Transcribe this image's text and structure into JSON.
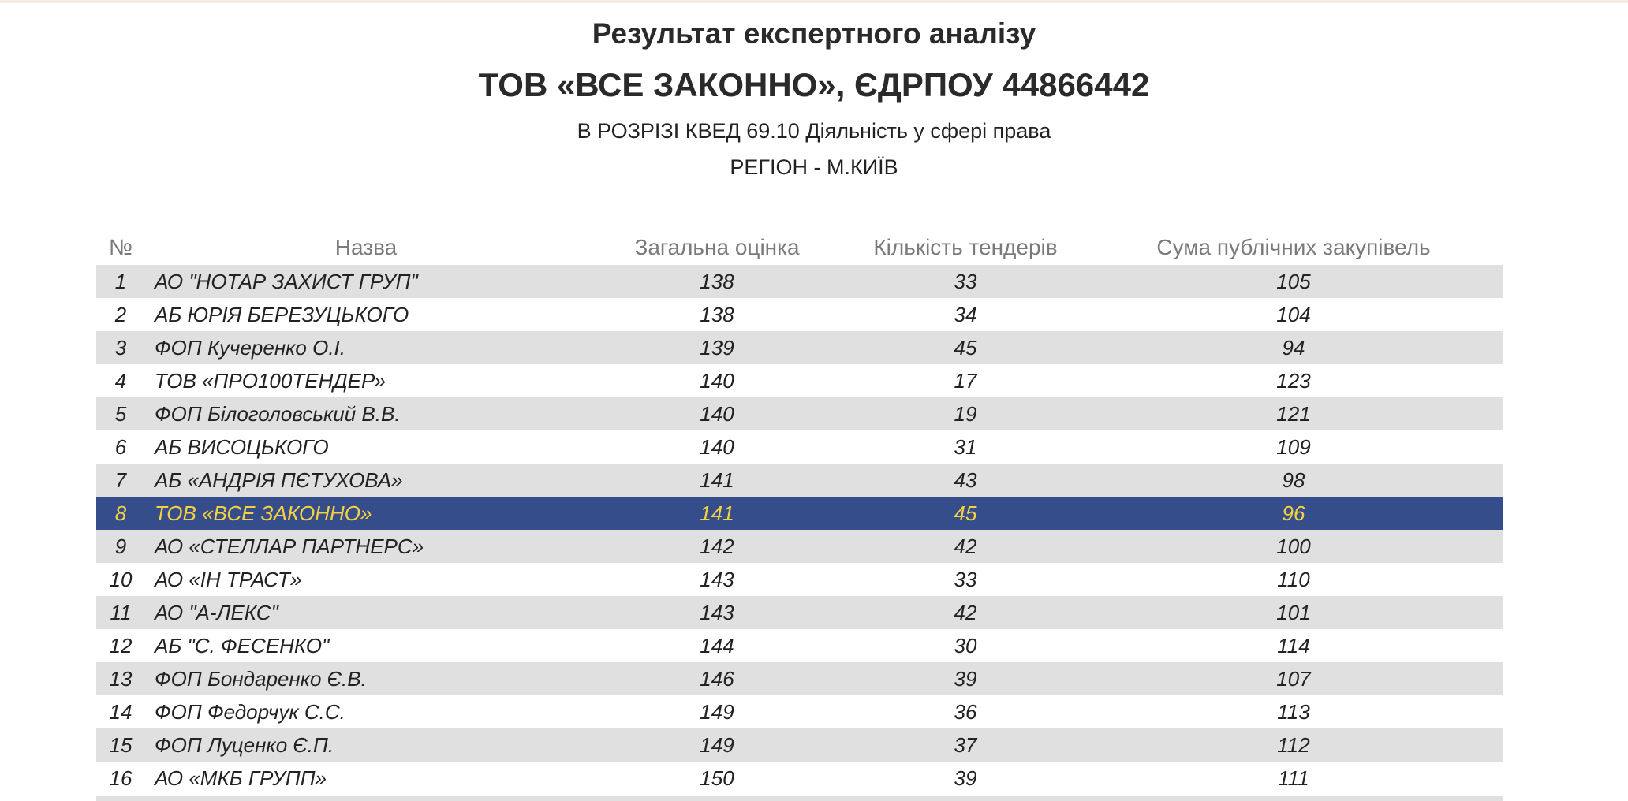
{
  "header": {
    "title": "Результат експертного аналізу",
    "company": "ТОВ «ВСЕ ЗАКОННО», ЄДРПОУ 44866442",
    "subtitle": "В РОЗРІЗІ КВЕД 69.10 Діяльність у сфері права",
    "region": "РЕГІОН - М.КИЇВ"
  },
  "colors": {
    "highlight_bg": "#354d8a",
    "highlight_text": "#f5d142",
    "stripe": "#e0e0e0"
  },
  "table": {
    "columns": [
      "№",
      "Назва",
      "Загальна оцінка",
      "Кількість тендерів",
      "Сума публічних закупівель"
    ],
    "highlighted_row": 8,
    "rows": [
      {
        "n": "1",
        "name": "АО \"НОТАР ЗАХИСТ ГРУП\"",
        "score": "138",
        "tenders": "33",
        "sum": "105"
      },
      {
        "n": "2",
        "name": "АБ ЮРІЯ БЕРЕЗУЦЬКОГО",
        "score": "138",
        "tenders": "34",
        "sum": "104"
      },
      {
        "n": "3",
        "name": "ФОП Кучеренко О.І.",
        "score": "139",
        "tenders": "45",
        "sum": "94"
      },
      {
        "n": "4",
        "name": "ТОВ «ПРО100ТЕНДЕР»",
        "score": "140",
        "tenders": "17",
        "sum": "123"
      },
      {
        "n": "5",
        "name": "ФОП Білоголовський В.В.",
        "score": "140",
        "tenders": "19",
        "sum": "121"
      },
      {
        "n": "6",
        "name": "АБ ВИСОЦЬКОГО",
        "score": "140",
        "tenders": "31",
        "sum": "109"
      },
      {
        "n": "7",
        "name": "АБ «АНДРІЯ ПЄТУХОВА»",
        "score": "141",
        "tenders": "43",
        "sum": "98"
      },
      {
        "n": "8",
        "name": "ТОВ «ВСЕ ЗАКОННО»",
        "score": "141",
        "tenders": "45",
        "sum": "96"
      },
      {
        "n": "9",
        "name": "АО «СТЕЛЛАР ПАРТНЕРС»",
        "score": "142",
        "tenders": "42",
        "sum": "100"
      },
      {
        "n": "10",
        "name": "АО «ІН ТРАСТ»",
        "score": "143",
        "tenders": "33",
        "sum": "110"
      },
      {
        "n": "11",
        "name": "АО \"А-ЛЕКС\"",
        "score": "143",
        "tenders": "42",
        "sum": "101"
      },
      {
        "n": "12",
        "name": "АБ \"С. ФЕСЕНКО\"",
        "score": "144",
        "tenders": "30",
        "sum": "114"
      },
      {
        "n": "13",
        "name": "ФОП Бондаренко Є.В.",
        "score": "146",
        "tenders": "39",
        "sum": "107"
      },
      {
        "n": "14",
        "name": "ФОП Федорчук С.С.",
        "score": "149",
        "tenders": "36",
        "sum": "113"
      },
      {
        "n": "15",
        "name": "ФОП Луценко Є.П.",
        "score": "149",
        "tenders": "37",
        "sum": "112"
      },
      {
        "n": "16",
        "name": "АО «МКБ ГРУПП»",
        "score": "150",
        "tenders": "39",
        "sum": "111"
      }
    ]
  }
}
